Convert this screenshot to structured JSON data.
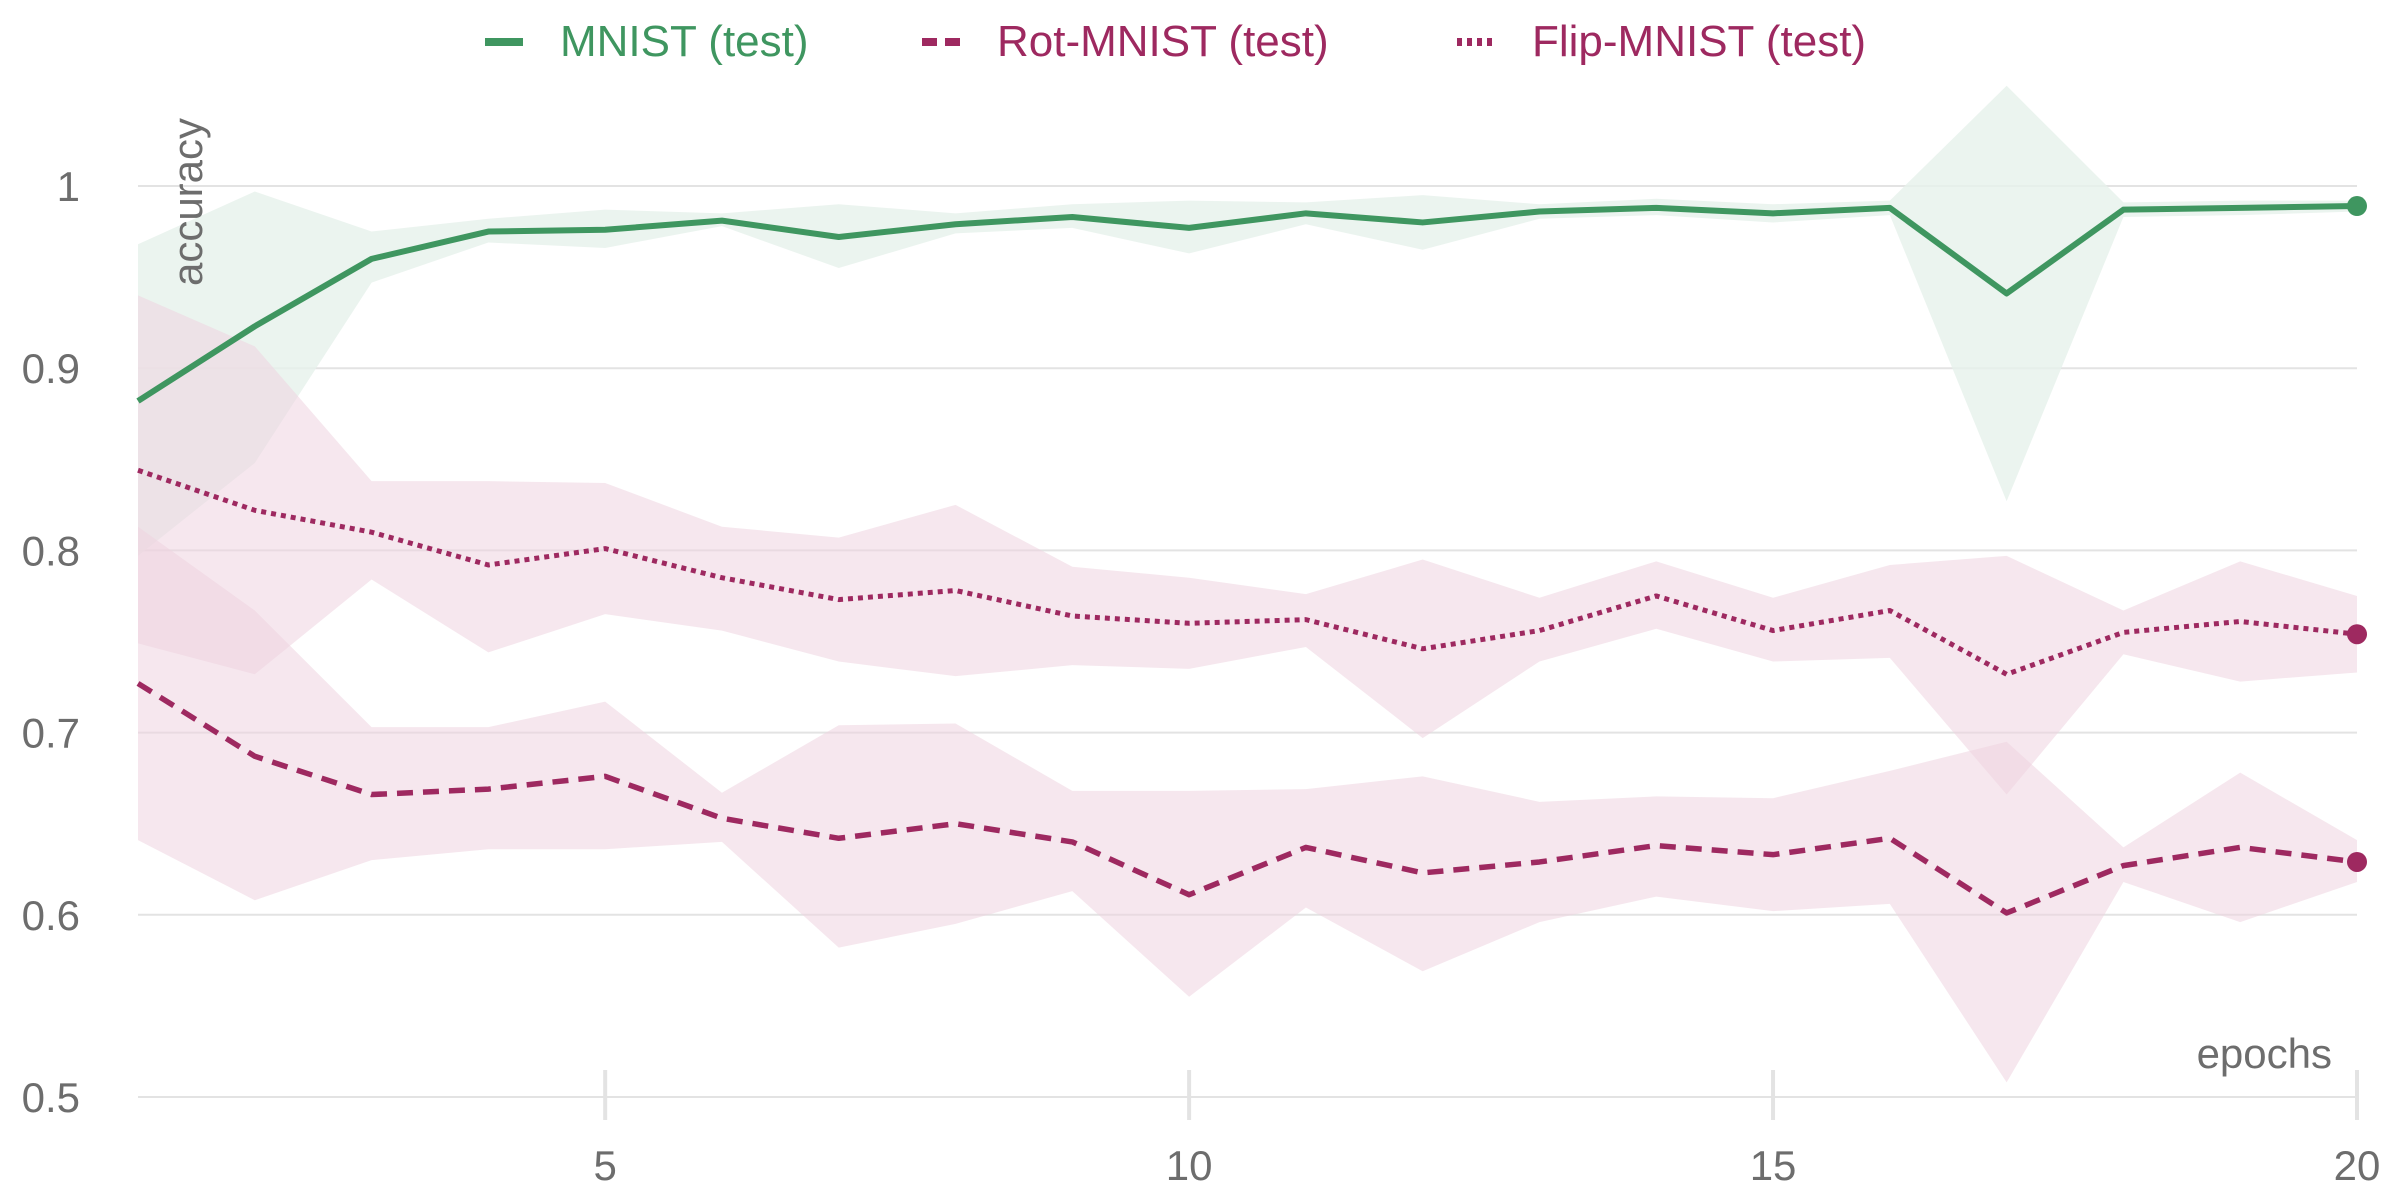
{
  "colors": {
    "mnist": "#3f9660",
    "magenta": "#9e2960",
    "mnist_band": "#e6f1eb",
    "magenta_band": "#efd4e0",
    "grid": "#e3e3e3",
    "text": "#6d6d6d"
  },
  "chart_data": {
    "type": "line",
    "title": "",
    "xlabel": "epochs",
    "ylabel": "accuracy",
    "xlim": [
      1,
      20
    ],
    "ylim": [
      0.5,
      1.05
    ],
    "xticks": [
      5,
      10,
      15,
      20
    ],
    "yticks": [
      0.5,
      0.6,
      0.7,
      0.8,
      0.9,
      1
    ],
    "ytick_labels": [
      "0.5",
      "0.6",
      "0.7",
      "0.8",
      "0.9",
      "1"
    ],
    "grid": "horizontal",
    "legend_position": "top",
    "x": [
      1,
      2,
      3,
      4,
      5,
      6,
      7,
      8,
      9,
      10,
      11,
      12,
      13,
      14,
      15,
      16,
      17,
      18,
      19,
      20
    ],
    "series": [
      {
        "name": "MNIST (test)",
        "style": "solid",
        "color": "#3f9660",
        "values": [
          0.882,
          0.923,
          0.96,
          0.975,
          0.976,
          0.981,
          0.972,
          0.979,
          0.983,
          0.977,
          0.985,
          0.98,
          0.986,
          0.988,
          0.985,
          0.988,
          0.941,
          0.987,
          0.988,
          0.989
        ],
        "upper": [
          0.968,
          0.997,
          0.975,
          0.982,
          0.987,
          0.985,
          0.99,
          0.985,
          0.99,
          0.992,
          0.991,
          0.995,
          0.99,
          0.993,
          0.99,
          0.992,
          1.055,
          0.991,
          0.992,
          0.992
        ],
        "lower": [
          0.797,
          0.848,
          0.947,
          0.969,
          0.966,
          0.978,
          0.955,
          0.974,
          0.977,
          0.963,
          0.979,
          0.965,
          0.982,
          0.984,
          0.98,
          0.984,
          0.827,
          0.983,
          0.984,
          0.986
        ]
      },
      {
        "name": "Rot-MNIST (test)",
        "style": "dashed",
        "color": "#9e2960",
        "values": [
          0.727,
          0.687,
          0.666,
          0.669,
          0.676,
          0.653,
          0.642,
          0.65,
          0.64,
          0.611,
          0.637,
          0.623,
          0.629,
          0.638,
          0.633,
          0.642,
          0.601,
          0.627,
          0.637,
          0.629
        ],
        "upper": [
          0.813,
          0.767,
          0.703,
          0.703,
          0.717,
          0.667,
          0.704,
          0.705,
          0.668,
          0.668,
          0.669,
          0.676,
          0.662,
          0.665,
          0.664,
          0.679,
          0.695,
          0.637,
          0.678,
          0.641
        ],
        "lower": [
          0.641,
          0.608,
          0.63,
          0.636,
          0.636,
          0.64,
          0.582,
          0.595,
          0.613,
          0.555,
          0.604,
          0.569,
          0.596,
          0.61,
          0.602,
          0.606,
          0.508,
          0.618,
          0.596,
          0.618
        ]
      },
      {
        "name": "Flip-MNIST (test)",
        "style": "dotted",
        "color": "#9e2960",
        "values": [
          0.844,
          0.822,
          0.81,
          0.792,
          0.801,
          0.785,
          0.773,
          0.778,
          0.764,
          0.76,
          0.762,
          0.746,
          0.756,
          0.775,
          0.756,
          0.767,
          0.732,
          0.755,
          0.761,
          0.754
        ],
        "upper": [
          0.94,
          0.912,
          0.838,
          0.838,
          0.837,
          0.813,
          0.807,
          0.825,
          0.791,
          0.785,
          0.776,
          0.795,
          0.774,
          0.794,
          0.774,
          0.792,
          0.797,
          0.767,
          0.794,
          0.775
        ],
        "lower": [
          0.749,
          0.732,
          0.784,
          0.744,
          0.765,
          0.756,
          0.739,
          0.731,
          0.737,
          0.735,
          0.747,
          0.697,
          0.739,
          0.757,
          0.739,
          0.741,
          0.666,
          0.743,
          0.728,
          0.733
        ]
      }
    ]
  }
}
